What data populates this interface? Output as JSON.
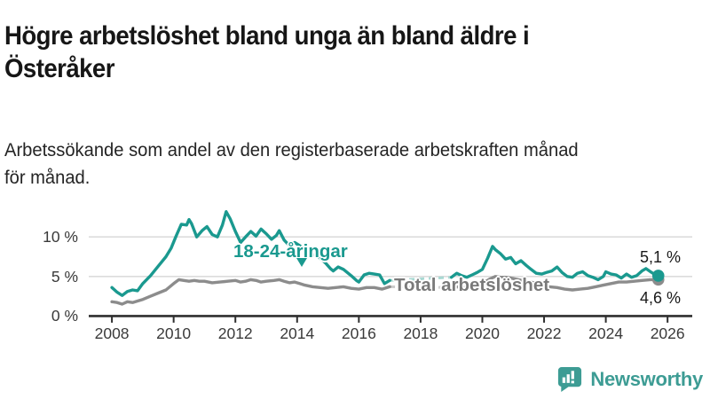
{
  "title": "Högre arbetslöshet bland unga än bland äldre i Österåker",
  "title_lines": [
    "Högre arbetslöshet bland unga än bland äldre i",
    "Österåker"
  ],
  "subtitle": "Arbetssökande som andel av den registerbaserade arbetskraften månad för månad.",
  "subtitle_lines": [
    "Arbetssökande som andel av den registerbaserade arbetskraften månad",
    "för månad."
  ],
  "branding": {
    "logo_text": "Newsworthy",
    "logo_icon": "newsworthy-speech-bubble-chart-icon",
    "brand_color": "#3D9C94"
  },
  "chart_data": {
    "type": "line",
    "title": "Högre arbetslöshet bland unga än bland äldre i Österåker",
    "caption": "Arbetssökande som andel av den registerbaserade arbetskraften månad för månad.",
    "unit": "%",
    "grid": true,
    "xlim": [
      2007.25,
      2026.8
    ],
    "ylim": [
      0,
      13.5
    ],
    "x_ticks": [
      2008,
      2010,
      2012,
      2014,
      2016,
      2018,
      2020,
      2022,
      2024,
      2026
    ],
    "y_ticks": [
      {
        "value": 0,
        "label": "0 %"
      },
      {
        "value": 5,
        "label": "5 %"
      },
      {
        "value": 10,
        "label": "10 %"
      }
    ],
    "data_gap": {
      "from": 2017.0,
      "to": 2019.0,
      "style": "faint-dashed"
    },
    "series": [
      {
        "name": "18-24-åringar",
        "color": "#1A998F",
        "gap_color": "#A9D9D3",
        "end_value": 5.1,
        "end_label": "5,1 %",
        "segments": [
          [
            [
              2008.0,
              3.6
            ],
            [
              2008.17,
              3.0
            ],
            [
              2008.33,
              2.6
            ],
            [
              2008.5,
              3.1
            ],
            [
              2008.67,
              3.3
            ],
            [
              2008.83,
              3.2
            ],
            [
              2009.0,
              4.1
            ],
            [
              2009.25,
              5.1
            ],
            [
              2009.5,
              6.3
            ],
            [
              2009.75,
              7.5
            ],
            [
              2009.92,
              8.6
            ],
            [
              2010.08,
              10.1
            ],
            [
              2010.25,
              11.6
            ],
            [
              2010.42,
              11.5
            ],
            [
              2010.5,
              12.2
            ],
            [
              2010.58,
              11.7
            ],
            [
              2010.75,
              10.0
            ],
            [
              2010.92,
              10.8
            ],
            [
              2011.08,
              11.3
            ],
            [
              2011.25,
              10.3
            ],
            [
              2011.42,
              10.0
            ],
            [
              2011.58,
              11.5
            ],
            [
              2011.7,
              13.2
            ],
            [
              2011.83,
              12.3
            ],
            [
              2012.0,
              10.7
            ],
            [
              2012.17,
              9.3
            ],
            [
              2012.33,
              10.0
            ],
            [
              2012.5,
              10.7
            ],
            [
              2012.67,
              10.1
            ],
            [
              2012.83,
              11.0
            ],
            [
              2013.0,
              10.4
            ],
            [
              2013.17,
              9.7
            ],
            [
              2013.33,
              10.2
            ],
            [
              2013.42,
              10.8
            ],
            [
              2013.58,
              9.6
            ],
            [
              2013.75,
              8.9
            ],
            [
              2013.92,
              9.3
            ],
            [
              2014.08,
              8.9
            ],
            [
              2014.25,
              8.4
            ],
            [
              2014.5,
              7.8
            ],
            [
              2014.75,
              7.3
            ],
            [
              2014.92,
              6.7
            ],
            [
              2015.08,
              6.0
            ],
            [
              2015.17,
              5.7
            ],
            [
              2015.33,
              6.2
            ],
            [
              2015.5,
              5.9
            ],
            [
              2015.75,
              5.1
            ],
            [
              2015.92,
              4.5
            ],
            [
              2016.0,
              4.3
            ],
            [
              2016.17,
              5.2
            ],
            [
              2016.33,
              5.4
            ],
            [
              2016.5,
              5.3
            ],
            [
              2016.67,
              5.2
            ],
            [
              2016.83,
              4.1
            ],
            [
              2017.0,
              4.5
            ]
          ],
          [
            [
              2019.0,
              4.9
            ],
            [
              2019.17,
              5.4
            ],
            [
              2019.33,
              5.1
            ],
            [
              2019.5,
              4.9
            ],
            [
              2019.67,
              5.2
            ],
            [
              2019.83,
              5.5
            ],
            [
              2020.0,
              5.9
            ],
            [
              2020.17,
              7.3
            ],
            [
              2020.33,
              8.8
            ],
            [
              2020.42,
              8.4
            ],
            [
              2020.58,
              7.9
            ],
            [
              2020.75,
              7.2
            ],
            [
              2020.92,
              7.4
            ],
            [
              2021.08,
              6.6
            ],
            [
              2021.25,
              7.0
            ],
            [
              2021.42,
              6.4
            ],
            [
              2021.58,
              5.9
            ],
            [
              2021.75,
              5.4
            ],
            [
              2021.92,
              5.3
            ],
            [
              2022.08,
              5.5
            ],
            [
              2022.25,
              5.7
            ],
            [
              2022.42,
              6.2
            ],
            [
              2022.58,
              5.5
            ],
            [
              2022.75,
              5.0
            ],
            [
              2022.92,
              4.9
            ],
            [
              2023.08,
              5.4
            ],
            [
              2023.25,
              5.6
            ],
            [
              2023.42,
              5.1
            ],
            [
              2023.58,
              4.9
            ],
            [
              2023.75,
              4.6
            ],
            [
              2023.92,
              5.0
            ],
            [
              2024.0,
              5.6
            ],
            [
              2024.17,
              5.3
            ],
            [
              2024.33,
              5.2
            ],
            [
              2024.5,
              4.8
            ],
            [
              2024.67,
              5.3
            ],
            [
              2024.83,
              4.9
            ],
            [
              2025.0,
              5.1
            ],
            [
              2025.17,
              5.7
            ],
            [
              2025.3,
              6.0
            ],
            [
              2025.45,
              5.6
            ],
            [
              2025.6,
              5.2
            ],
            [
              2025.7,
              5.1
            ]
          ]
        ]
      },
      {
        "name": "Total arbetslöshet",
        "color": "#8C8C8C",
        "gap_color": "#CBCBCB",
        "end_value": 4.6,
        "end_label": "4,6 %",
        "segments": [
          [
            [
              2008.0,
              1.8
            ],
            [
              2008.17,
              1.7
            ],
            [
              2008.33,
              1.5
            ],
            [
              2008.5,
              1.8
            ],
            [
              2008.67,
              1.7
            ],
            [
              2008.83,
              1.9
            ],
            [
              2009.0,
              2.1
            ],
            [
              2009.25,
              2.5
            ],
            [
              2009.5,
              2.9
            ],
            [
              2009.75,
              3.3
            ],
            [
              2010.0,
              4.1
            ],
            [
              2010.17,
              4.6
            ],
            [
              2010.33,
              4.5
            ],
            [
              2010.5,
              4.4
            ],
            [
              2010.67,
              4.5
            ],
            [
              2010.83,
              4.4
            ],
            [
              2011.0,
              4.4
            ],
            [
              2011.25,
              4.2
            ],
            [
              2011.5,
              4.3
            ],
            [
              2011.75,
              4.4
            ],
            [
              2012.0,
              4.5
            ],
            [
              2012.17,
              4.3
            ],
            [
              2012.33,
              4.4
            ],
            [
              2012.5,
              4.6
            ],
            [
              2012.67,
              4.5
            ],
            [
              2012.83,
              4.3
            ],
            [
              2013.0,
              4.4
            ],
            [
              2013.25,
              4.5
            ],
            [
              2013.42,
              4.6
            ],
            [
              2013.58,
              4.4
            ],
            [
              2013.75,
              4.2
            ],
            [
              2013.92,
              4.3
            ],
            [
              2014.08,
              4.1
            ],
            [
              2014.25,
              3.9
            ],
            [
              2014.5,
              3.7
            ],
            [
              2014.75,
              3.6
            ],
            [
              2015.0,
              3.5
            ],
            [
              2015.25,
              3.6
            ],
            [
              2015.5,
              3.7
            ],
            [
              2015.75,
              3.5
            ],
            [
              2016.0,
              3.4
            ],
            [
              2016.25,
              3.6
            ],
            [
              2016.5,
              3.6
            ],
            [
              2016.75,
              3.4
            ],
            [
              2017.0,
              3.7
            ]
          ],
          [
            [
              2019.0,
              3.6
            ],
            [
              2019.25,
              3.7
            ],
            [
              2019.5,
              3.6
            ],
            [
              2019.75,
              3.8
            ],
            [
              2020.0,
              4.1
            ],
            [
              2020.25,
              4.7
            ],
            [
              2020.42,
              5.0
            ],
            [
              2020.58,
              4.9
            ],
            [
              2020.75,
              4.9
            ],
            [
              2020.92,
              4.8
            ],
            [
              2021.17,
              4.6
            ],
            [
              2021.42,
              4.4
            ],
            [
              2021.67,
              4.2
            ],
            [
              2021.92,
              3.9
            ],
            [
              2022.17,
              3.7
            ],
            [
              2022.42,
              3.6
            ],
            [
              2022.67,
              3.4
            ],
            [
              2022.92,
              3.3
            ],
            [
              2023.17,
              3.4
            ],
            [
              2023.42,
              3.5
            ],
            [
              2023.67,
              3.7
            ],
            [
              2023.92,
              3.9
            ],
            [
              2024.17,
              4.1
            ],
            [
              2024.42,
              4.3
            ],
            [
              2024.67,
              4.3
            ],
            [
              2024.92,
              4.4
            ],
            [
              2025.17,
              4.5
            ],
            [
              2025.45,
              4.6
            ],
            [
              2025.7,
              4.6
            ]
          ]
        ]
      }
    ]
  }
}
